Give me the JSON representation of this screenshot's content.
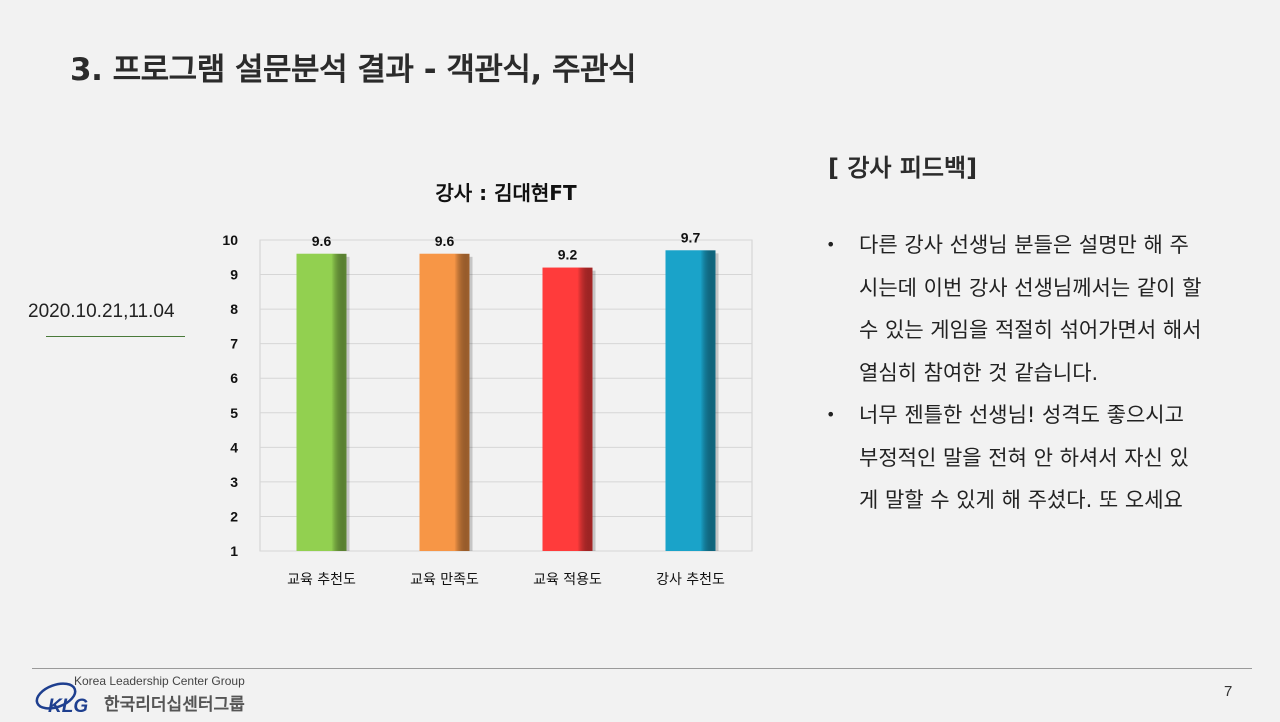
{
  "slide": {
    "title": "3. 프로그램 설문분석 결과 - 객관식, 주관식",
    "date": "2020.10.21,11.04",
    "page_number": "7"
  },
  "chart_data": {
    "type": "bar",
    "title": "강사 : 김대현FT",
    "categories": [
      "교육 추천도",
      "교육 만족도",
      "교육 적용도",
      "강사 추천도"
    ],
    "values": [
      9.6,
      9.6,
      9.2,
      9.7
    ],
    "data_labels": [
      "9.6",
      "9.6",
      "9.2",
      "9.7"
    ],
    "colors": [
      "#92d050",
      "#f79646",
      "#ff3b3b",
      "#1aa3c9"
    ],
    "ylim": [
      1,
      10
    ],
    "yticks": [
      1,
      2,
      3,
      4,
      5,
      6,
      7,
      8,
      9,
      10
    ],
    "grid": true,
    "legend": "none"
  },
  "feedback": {
    "title": "[ 강사 피드백]",
    "bullet_glyph": "•",
    "items": [
      "다른 강사 선생님 분들은 설명만 해 주시는데 이번 강사 선생님께서는 같이 할 수 있는 게임을 적절히 섞어가면서 해서 열심히 참여한 것 같습니다.",
      "너무 젠틀한 선생님! 성격도 좋으시고 부정적인 말을 전혀 안 하셔서 자신 있게 말할 수 있게 해 주셨다. 또 오세요"
    ]
  },
  "footer": {
    "logo_text_en": "Korea Leadership Center Group",
    "logo_mark": "KLG",
    "logo_text_ko": "한국리더십센터그룹"
  }
}
